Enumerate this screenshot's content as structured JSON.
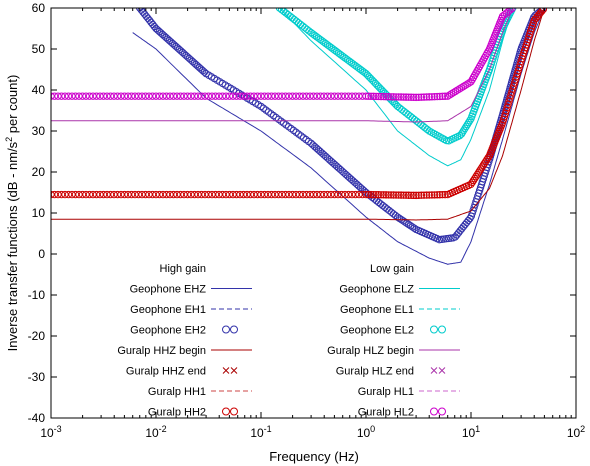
{
  "chart_data": {
    "type": "line",
    "title": "",
    "xlabel": "Frequency (Hz)",
    "ylabel_main": "Inverse transfer functions (dB - nm/s",
    "ylabel_sup": "2",
    "ylabel_end": " per count)",
    "xscale": "log",
    "xlim": [
      0.001,
      100
    ],
    "ylim": [
      -40,
      60
    ],
    "x_tick_bases": [
      "10",
      "10",
      "10",
      "10",
      "10",
      "10"
    ],
    "x_tick_exps": [
      "-3",
      "-2",
      "-1",
      "0",
      "1",
      "2"
    ],
    "x_tick_values": [
      0.001,
      0.01,
      0.1,
      1,
      10,
      100
    ],
    "y_ticks": [
      -40,
      -30,
      -20,
      -10,
      0,
      10,
      20,
      30,
      40,
      50,
      60
    ],
    "legend_groups": [
      {
        "title": "High gain",
        "entries": [
          0,
          1,
          2,
          3,
          4,
          5,
          6
        ]
      },
      {
        "title": "Low gain",
        "entries": [
          7,
          8,
          9,
          10,
          11,
          12,
          13
        ]
      }
    ],
    "series": [
      {
        "name": "Geophone EHZ",
        "color": "#3333aa",
        "style": "solid",
        "x": [
          0.006,
          0.01,
          0.03,
          0.1,
          0.3,
          1,
          2,
          4,
          6,
          8,
          10,
          15,
          20,
          30,
          40,
          50
        ],
        "y": [
          54,
          50,
          38,
          30,
          21,
          9,
          3,
          -1,
          -2.5,
          -2,
          3,
          17,
          28,
          44,
          54,
          60
        ]
      },
      {
        "name": "Geophone EH1",
        "color": "#3333aa",
        "style": "dashed",
        "x": [],
        "y": []
      },
      {
        "name": "Geophone EH2",
        "color": "#3333aa",
        "style": "circles",
        "x": [
          0.007,
          0.01,
          0.03,
          0.1,
          0.3,
          1,
          2,
          3,
          5,
          7,
          10,
          15,
          20,
          30,
          40,
          50
        ],
        "y": [
          60,
          55,
          44,
          36,
          27,
          15,
          9,
          6,
          3.5,
          4,
          9,
          23,
          34,
          50,
          58,
          60
        ]
      },
      {
        "name": "Guralp HHZ begin",
        "color": "#aa0000",
        "style": "solid",
        "x": [
          0.001,
          0.1,
          1,
          3,
          6,
          10,
          15,
          20,
          30,
          40,
          50
        ],
        "y": [
          8.5,
          8.5,
          8.5,
          8.3,
          8.5,
          10.5,
          16,
          24,
          40,
          52,
          60
        ]
      },
      {
        "name": "Guralp HHZ end",
        "color": "#aa0000",
        "style": "crosses",
        "x": [],
        "y": []
      },
      {
        "name": "Guralp HH1",
        "color": "#cc4444",
        "style": "dashed",
        "x": [],
        "y": []
      },
      {
        "name": "Guralp HH2",
        "color": "#cc0000",
        "style": "circles",
        "x": [
          0.001,
          0.1,
          1,
          3,
          6,
          10,
          15,
          20,
          30,
          40,
          50
        ],
        "y": [
          14.5,
          14.5,
          14.5,
          14.3,
          14.5,
          17,
          24,
          32,
          47,
          57,
          60
        ]
      },
      {
        "name": "Geophone ELZ",
        "color": "#00cccc",
        "style": "solid",
        "x": [
          0.15,
          0.3,
          1,
          2,
          4,
          6,
          8,
          10,
          15,
          20,
          25
        ],
        "y": [
          60,
          52,
          40,
          30,
          24,
          21.5,
          23,
          28,
          40,
          52,
          60
        ]
      },
      {
        "name": "Geophone EL1",
        "color": "#00cccc",
        "style": "dashed",
        "x": [],
        "y": []
      },
      {
        "name": "Geophone EL2",
        "color": "#00cccc",
        "style": "circles",
        "x": [
          0.15,
          0.3,
          1,
          2,
          4,
          6,
          8,
          10,
          15,
          20,
          25
        ],
        "y": [
          60,
          54,
          44,
          36,
          30,
          27.5,
          29,
          33,
          45,
          55,
          60
        ]
      },
      {
        "name": "Guralp HLZ begin",
        "color": "#aa33aa",
        "style": "solid",
        "x": [
          0.001,
          0.1,
          1,
          3,
          6,
          10,
          15,
          20,
          25
        ],
        "y": [
          32.5,
          32.5,
          32.5,
          32.2,
          32.5,
          36,
          45,
          54,
          60
        ]
      },
      {
        "name": "Guralp HLZ end",
        "color": "#aa33aa",
        "style": "crosses",
        "x": [],
        "y": []
      },
      {
        "name": "Guralp HL1",
        "color": "#cc66cc",
        "style": "dashed",
        "x": [],
        "y": []
      },
      {
        "name": "Guralp HL2",
        "color": "#cc00cc",
        "style": "circles",
        "x": [
          0.001,
          0.1,
          1,
          3,
          6,
          10,
          15,
          20,
          25
        ],
        "y": [
          38.5,
          38.5,
          38.5,
          38.2,
          38.5,
          42,
          50,
          58,
          60
        ]
      }
    ]
  }
}
